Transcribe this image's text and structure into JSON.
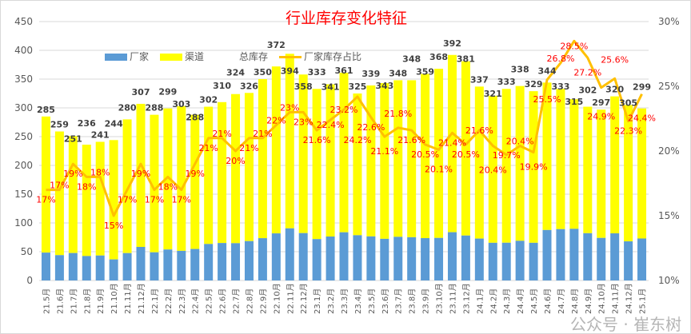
{
  "chart_data": {
    "type": "bar",
    "title": "行业库存变化特征",
    "categories": [
      "21.5月",
      "21.6月",
      "21.7月",
      "21.8月",
      "21.9月",
      "21.10月",
      "21.11月",
      "21.12月",
      "22.1月",
      "22.2月",
      "22.3月",
      "22.4月",
      "22.5月",
      "22.6月",
      "22.7月",
      "22.8月",
      "22.9月",
      "22.10月",
      "22.11月",
      "22.12月",
      "23.1月",
      "23.2月",
      "23.3月",
      "23.4月",
      "23.5月",
      "23.6月",
      "23.7月",
      "23.8月",
      "23.9月",
      "23.10月",
      "23.11月",
      "23.12月",
      "24.1月",
      "24.2月",
      "24.3月",
      "24.4月",
      "24.5月",
      "24.6月",
      "24.7月",
      "24.8月",
      "24.9月",
      "24.10月",
      "24.11月",
      "24.12月",
      "25.1月"
    ],
    "total": [
      285,
      259,
      251,
      236,
      241,
      244,
      280,
      307,
      288,
      299,
      303,
      288,
      302,
      310,
      324,
      326,
      350,
      372,
      394,
      358,
      333,
      341,
      361,
      325,
      339,
      343,
      348,
      348,
      359,
      368,
      392,
      381,
      337,
      321,
      333,
      338,
      329,
      344,
      333,
      315,
      302,
      297,
      320,
      305,
      299
    ],
    "share_pct": [
      17,
      17,
      19,
      18,
      18,
      15,
      17,
      19,
      17,
      18,
      17,
      19,
      21,
      21,
      20,
      21,
      21,
      22,
      23,
      23,
      21.6,
      22.4,
      23.2,
      24.2,
      22.6,
      21.1,
      21.8,
      21.6,
      20.5,
      20.1,
      21.4,
      20.5,
      21.6,
      20.4,
      19.7,
      20.4,
      19.9,
      25.5,
      26.8,
      28.5,
      27.2,
      24.9,
      25.6,
      22.3,
      24.4
    ],
    "series": [
      {
        "name": "厂家",
        "color": "#5b9bd5",
        "type": "stacked-bar"
      },
      {
        "name": "渠道",
        "color": "#ffff00",
        "type": "stacked-bar"
      },
      {
        "name": "总库存",
        "type": "data-label"
      },
      {
        "name": "厂家库存占比",
        "color": "#ffc000",
        "type": "line",
        "axis": "right"
      }
    ],
    "ylim": [
      0,
      450
    ],
    "yticks": [
      0,
      50,
      100,
      150,
      200,
      250,
      300,
      350,
      400,
      450
    ],
    "y2lim": [
      10,
      30
    ],
    "y2ticks": [
      "10%",
      "15%",
      "20%",
      "25%",
      "30%"
    ],
    "grid": true,
    "legend": "top"
  },
  "watermark": "公众号 · 崔东树"
}
